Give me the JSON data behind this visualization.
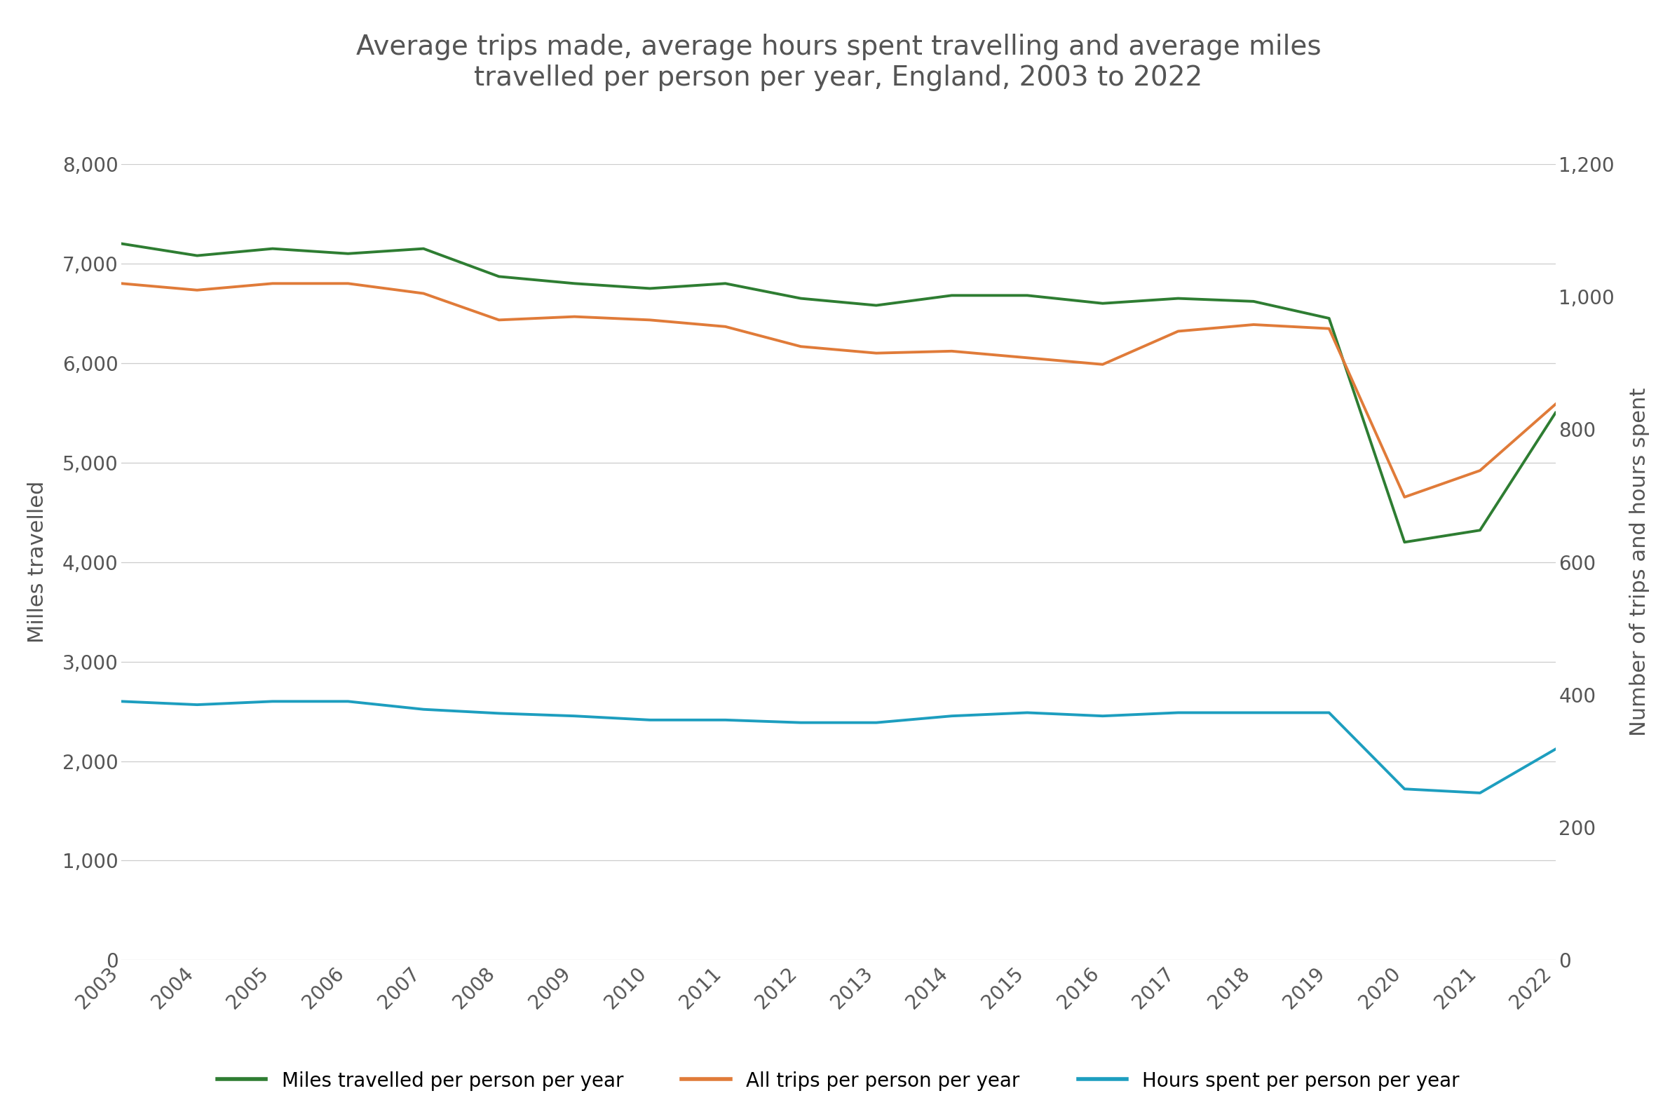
{
  "years": [
    2003,
    2004,
    2005,
    2006,
    2007,
    2008,
    2009,
    2010,
    2011,
    2012,
    2013,
    2014,
    2015,
    2016,
    2017,
    2018,
    2019,
    2020,
    2021,
    2022
  ],
  "miles": [
    7200,
    7080,
    7150,
    7100,
    7150,
    6870,
    6800,
    6750,
    6800,
    6650,
    6580,
    6680,
    6680,
    6600,
    6650,
    6620,
    6450,
    4200,
    4320,
    5500
  ],
  "trips": [
    1020,
    1010,
    1020,
    1020,
    1005,
    965,
    970,
    965,
    955,
    925,
    915,
    918,
    908,
    898,
    948,
    958,
    952,
    698,
    738,
    838
  ],
  "hours": [
    390,
    385,
    390,
    390,
    378,
    372,
    368,
    362,
    362,
    358,
    358,
    368,
    373,
    368,
    373,
    373,
    373,
    258,
    252,
    318
  ],
  "miles_color": "#2e7d32",
  "trips_color": "#e07b39",
  "hours_color": "#1d9ebf",
  "title_line1": "Average trips made, average hours spent travelling and average miles",
  "title_line2": "travelled per person per year, England, 2003 to 2022",
  "ylabel_left": "Milles travelled",
  "ylabel_right": "Number of trips and hours spent",
  "legend_miles": "Miles travelled per person per year",
  "legend_trips": "All trips per person per year",
  "legend_hours": "Hours spent per person per year",
  "ylim_left": [
    0,
    8000
  ],
  "ylim_right": [
    0,
    1200
  ],
  "yticks_left": [
    0,
    1000,
    2000,
    3000,
    4000,
    5000,
    6000,
    7000,
    8000
  ],
  "yticks_right": [
    0,
    200,
    400,
    600,
    800,
    1000,
    1200
  ],
  "background_color": "#ffffff",
  "line_width": 2.8,
  "grid_color": "#cccccc",
  "tick_color": "#555555",
  "title_fontsize": 28,
  "label_fontsize": 22,
  "tick_fontsize": 20,
  "legend_fontsize": 20
}
